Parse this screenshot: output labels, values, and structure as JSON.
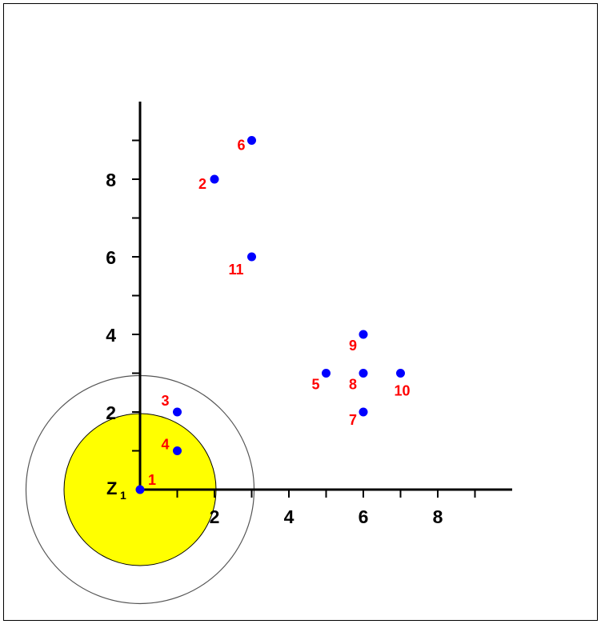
{
  "chart_data": {
    "type": "scatter",
    "title": "",
    "xlabel": "",
    "ylabel": "",
    "xlim": [
      0,
      10
    ],
    "ylim": [
      0,
      10
    ],
    "xticks_labeled": [
      "2",
      "4",
      "6",
      "8"
    ],
    "yticks_labeled": [
      "2",
      "4",
      "6",
      "8"
    ],
    "grid": false,
    "points": [
      {
        "label": "1",
        "x": 0,
        "y": 0
      },
      {
        "label": "2",
        "x": 2,
        "y": 8
      },
      {
        "label": "3",
        "x": 1,
        "y": 2
      },
      {
        "label": "4",
        "x": 1,
        "y": 1
      },
      {
        "label": "5",
        "x": 5,
        "y": 3
      },
      {
        "label": "6",
        "x": 3,
        "y": 9
      },
      {
        "label": "7",
        "x": 6,
        "y": 2
      },
      {
        "label": "8",
        "x": 6,
        "y": 3
      },
      {
        "label": "9",
        "x": 6,
        "y": 4
      },
      {
        "label": "10",
        "x": 7,
        "y": 3
      },
      {
        "label": "11",
        "x": 3,
        "y": 6
      }
    ],
    "center": {
      "label": "Z",
      "subscript": "1",
      "x": 0,
      "y": 0
    },
    "circles": [
      {
        "radius": 3,
        "fill": "none",
        "stroke": "#555555"
      },
      {
        "radius": 2,
        "fill": "#ffff00",
        "stroke": "#000000"
      }
    ],
    "colors": {
      "point": "#0000ff",
      "point_label": "#ff0000",
      "axis": "#000000"
    }
  }
}
